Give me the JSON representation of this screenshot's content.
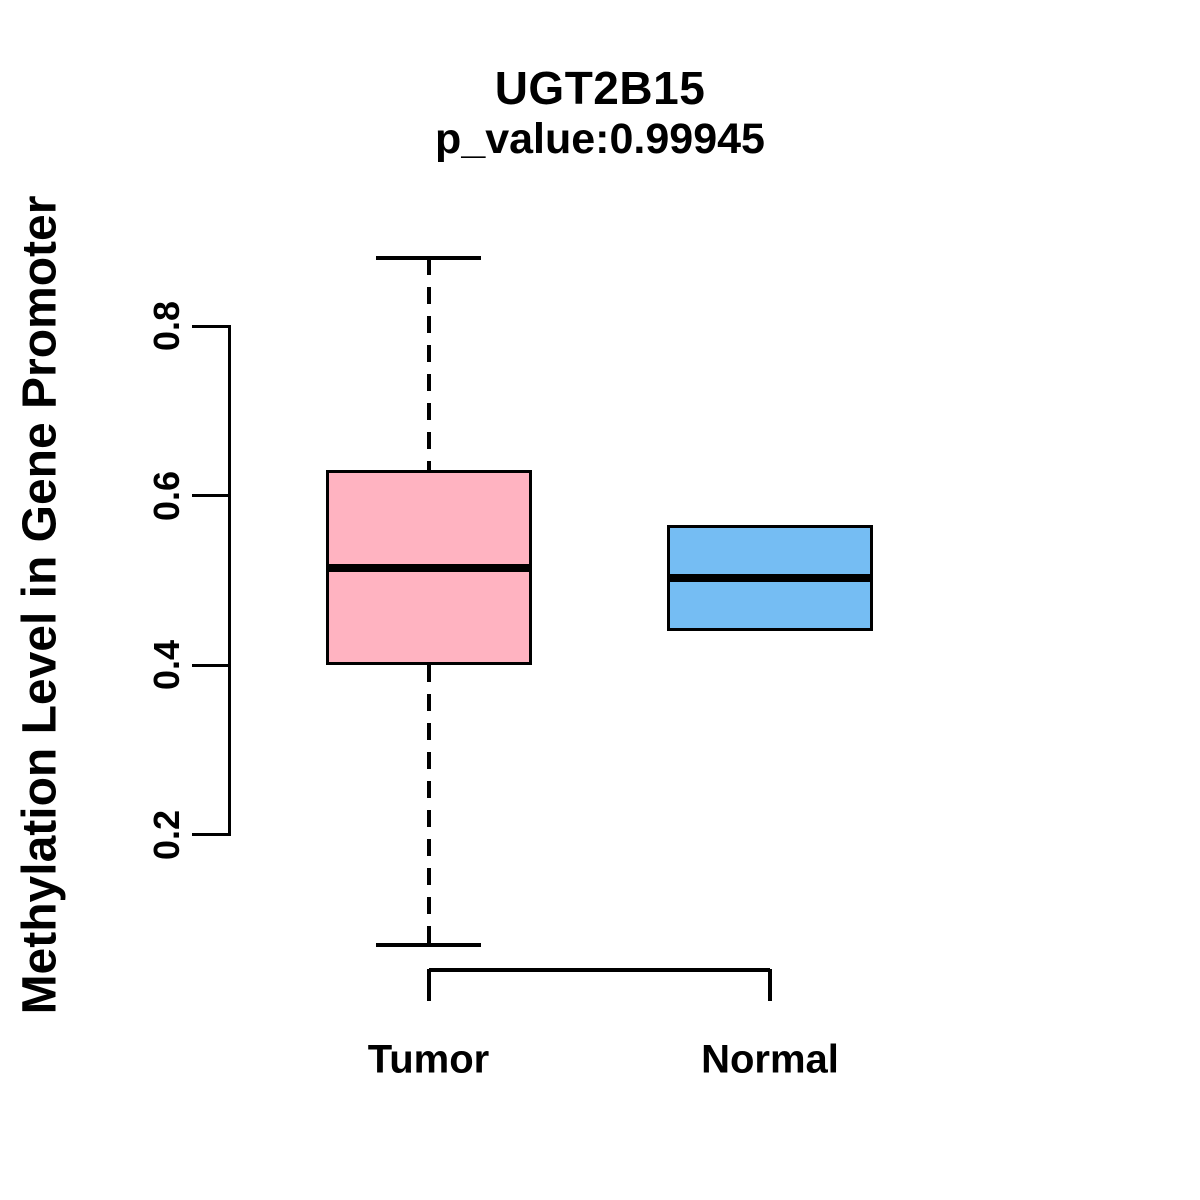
{
  "chart_data": {
    "type": "boxplot",
    "title": "UGT2B15",
    "subtitle": "p_value:0.99945",
    "xlabel": "",
    "ylabel": "Methylation Level in Gene Promoter",
    "categories": [
      "Tumor",
      "Normal"
    ],
    "yticks": [
      0.2,
      0.4,
      0.6,
      0.8
    ],
    "ylim": [
      0.05,
      0.92
    ],
    "grid": false,
    "legend": "none",
    "orientation": "vertical",
    "series": [
      {
        "name": "Tumor",
        "fill": "#FFB3C1",
        "whisker_low": 0.07,
        "q1": 0.4,
        "median": 0.515,
        "q3": 0.63,
        "whisker_high": 0.88,
        "whisker_line_style": "dashed"
      },
      {
        "name": "Normal",
        "fill": "#75BDF3",
        "whisker_low": 0.44,
        "q1": 0.44,
        "median": 0.503,
        "q3": 0.565,
        "whisker_high": 0.565,
        "whisker_line_style": "dashed"
      }
    ],
    "line_color": "#000000",
    "background_color": "#FFFFFF"
  }
}
